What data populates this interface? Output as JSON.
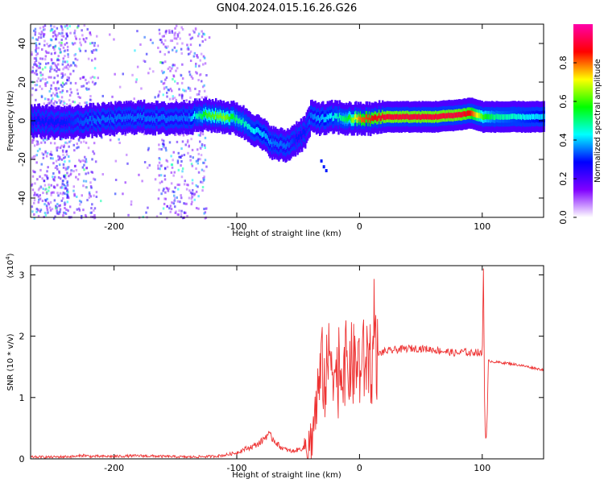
{
  "title": "GN04.2024.015.16.26.G26",
  "chart_data": [
    {
      "type": "heatmap",
      "title": "GN04.2024.015.16.26.G26",
      "xlabel": "Height of straight line (km)",
      "ylabel": "Frequency (Hz)",
      "xlim": [
        -268,
        150
      ],
      "ylim": [
        -50,
        50
      ],
      "x_ticks": [
        -200,
        -100,
        0,
        100
      ],
      "y_ticks": [
        -40,
        -20,
        0,
        20,
        40
      ],
      "colorbar": {
        "label": "Normalized spectral amplitude",
        "range": [
          0,
          1
        ],
        "ticks": [
          "0.0",
          "0.2",
          "0.4",
          "0.6",
          "0.8"
        ],
        "colors": [
          "#ffffff",
          "#8000ff",
          "#0000ff",
          "#00ffff",
          "#00ff00",
          "#ffff00",
          "#ff0000",
          "#ff00aa"
        ]
      },
      "ridge": {
        "x": [
          -268,
          -240,
          -220,
          -200,
          -180,
          -160,
          -140,
          -125,
          -110,
          -100,
          -90,
          -80,
          -70,
          -60,
          -52,
          -45,
          -40,
          -30,
          -20,
          -10,
          0,
          10,
          20,
          40,
          60,
          80,
          90,
          100,
          110,
          130,
          150
        ],
        "frequency": [
          0,
          -1,
          0,
          1,
          2,
          1,
          2,
          3,
          2,
          1,
          -3,
          -7,
          -12,
          -13,
          -9,
          -6,
          2,
          1,
          2,
          1,
          1,
          1,
          2,
          2,
          2,
          3,
          4,
          2,
          2,
          2,
          2
        ],
        "amplitude": [
          0.3,
          0.3,
          0.35,
          0.35,
          0.35,
          0.35,
          0.35,
          0.6,
          0.65,
          0.5,
          0.45,
          0.4,
          0.35,
          0.35,
          0.3,
          0.3,
          0.35,
          0.4,
          0.45,
          0.55,
          0.8,
          0.85,
          0.9,
          0.9,
          0.9,
          0.9,
          0.85,
          0.6,
          0.5,
          0.45,
          0.4
        ]
      }
    },
    {
      "type": "line",
      "xlabel": "Height of straight line (km)",
      "ylabel": "SNR (10 * v/v)",
      "y_multiplier": "(x10^4)",
      "xlim": [
        -268,
        150
      ],
      "ylim": [
        0,
        3.15
      ],
      "x_ticks": [
        -200,
        -100,
        0,
        100
      ],
      "y_ticks": [
        0,
        1,
        2,
        3
      ],
      "color": "#ee3333",
      "series": [
        {
          "x": [
            -268,
            -250,
            -230,
            -225,
            -220,
            -200,
            -180,
            -160,
            -140,
            -120,
            -110,
            -100,
            -95,
            -90,
            -85,
            -80,
            -75,
            -70,
            -65,
            -60,
            -55,
            -50,
            -45,
            -40,
            -38,
            -35,
            -32,
            -30,
            -28,
            -25,
            -22,
            -20,
            -18,
            -15,
            -12,
            -10,
            -8,
            -5,
            -2,
            0,
            5,
            10,
            15,
            20,
            25,
            30,
            40,
            50,
            60,
            70,
            80,
            85,
            90,
            95,
            100,
            101,
            102,
            103,
            104,
            105,
            110,
            120,
            130,
            140,
            150
          ],
          "y": [
            0.03,
            0.03,
            0.04,
            0.06,
            0.04,
            0.04,
            0.05,
            0.04,
            0.03,
            0.04,
            0.06,
            0.1,
            0.15,
            0.18,
            0.22,
            0.28,
            0.4,
            0.32,
            0.2,
            0.15,
            0.12,
            0.15,
            0.18,
            0.25,
            0.5,
            0.9,
            1.3,
            1.5,
            1.2,
            1.6,
            1.8,
            1.4,
            1.3,
            1.5,
            1.6,
            1.45,
            1.55,
            1.5,
            1.55,
            1.5,
            1.6,
            1.62,
            1.7,
            1.75,
            1.76,
            1.78,
            1.8,
            1.8,
            1.78,
            1.75,
            1.72,
            1.75,
            1.72,
            1.75,
            1.7,
            3.1,
            0.7,
            0.25,
            0.6,
            1.6,
            1.58,
            1.56,
            1.53,
            1.49,
            1.45
          ]
        }
      ]
    }
  ]
}
